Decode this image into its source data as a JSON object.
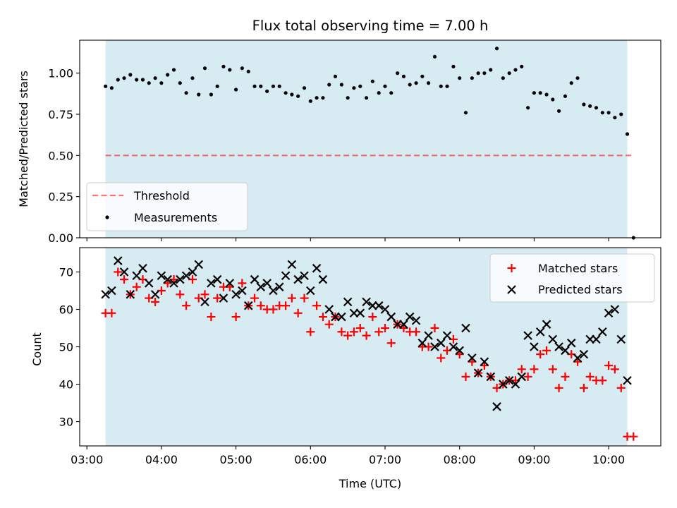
{
  "chart_data": [
    {
      "type": "scatter",
      "title": "Flux total observing time = 7.00 h",
      "xlabel": "",
      "ylabel": "Matched/Predicted stars",
      "ylim": [
        0,
        1.2
      ],
      "yticks": [
        0.0,
        0.25,
        0.5,
        0.75,
        1.0
      ],
      "ytick_labels": [
        "0.00",
        "0.25",
        "0.50",
        "0.75",
        "1.00"
      ],
      "xlim_hours": [
        2.89,
        10.68
      ],
      "observing_window_hours": [
        3.25,
        10.25
      ],
      "shade_color": "#add8e6",
      "threshold": {
        "name": "Threshold",
        "value": 0.5,
        "x_range_hours": [
          3.25,
          10.33
        ],
        "color": "#ff0000"
      },
      "legend": {
        "placement": "lower-left",
        "entries": [
          "Threshold",
          "Measurements"
        ]
      },
      "series": [
        {
          "name": "Measurements",
          "color": "#000000",
          "marker": "dot",
          "x_hours": [
            3.25,
            3.333,
            3.417,
            3.5,
            3.583,
            3.667,
            3.75,
            3.833,
            3.917,
            4,
            4.083,
            4.167,
            4.25,
            4.333,
            4.417,
            4.5,
            4.583,
            4.667,
            4.75,
            4.833,
            4.917,
            5,
            5.083,
            5.167,
            5.25,
            5.333,
            5.417,
            5.5,
            5.583,
            5.667,
            5.75,
            5.833,
            5.917,
            6,
            6.083,
            6.167,
            6.25,
            6.333,
            6.417,
            6.5,
            6.583,
            6.667,
            6.75,
            6.833,
            6.917,
            7,
            7.083,
            7.167,
            7.25,
            7.333,
            7.417,
            7.5,
            7.583,
            7.667,
            7.75,
            7.833,
            7.917,
            8,
            8.083,
            8.167,
            8.25,
            8.333,
            8.417,
            8.5,
            8.583,
            8.667,
            8.75,
            8.833,
            8.917,
            9,
            9.083,
            9.167,
            9.25,
            9.333,
            9.417,
            9.5,
            9.583,
            9.667,
            9.75,
            9.833,
            9.917,
            10,
            10.083,
            10.167,
            10.25,
            10.333
          ],
          "y": [
            0.92,
            0.91,
            0.96,
            0.97,
            0.99,
            0.96,
            0.96,
            0.94,
            0.97,
            0.94,
            0.99,
            1.02,
            0.94,
            0.88,
            0.97,
            0.87,
            1.03,
            0.87,
            0.92,
            1.04,
            1.02,
            0.9,
            1.03,
            1.01,
            0.92,
            0.92,
            0.89,
            0.92,
            0.92,
            0.88,
            0.87,
            0.86,
            0.91,
            0.83,
            0.85,
            0.85,
            0.93,
            0.98,
            0.93,
            0.85,
            0.91,
            0.92,
            0.85,
            0.95,
            0.88,
            0.92,
            0.88,
            1.0,
            0.98,
            0.93,
            0.94,
            0.98,
            0.94,
            1.1,
            0.92,
            0.92,
            1.04,
            0.97,
            0.76,
            0.97,
            1.0,
            1.0,
            1.02,
            1.15,
            0.97,
            1.0,
            1.02,
            1.04,
            0.79,
            0.88,
            0.88,
            0.87,
            0.84,
            0.77,
            0.86,
            0.94,
            0.97,
            0.81,
            0.8,
            0.79,
            0.76,
            0.76,
            0.73,
            0.75,
            0.63,
            0.0
          ]
        }
      ]
    },
    {
      "type": "scatter",
      "title": "",
      "xlabel": "Time (UTC)",
      "ylabel": "Count",
      "ylim": [
        23.5,
        76.5
      ],
      "yticks": [
        30,
        40,
        50,
        60,
        70
      ],
      "ytick_labels": [
        "30",
        "40",
        "50",
        "60",
        "70"
      ],
      "xlim_hours": [
        2.89,
        10.68
      ],
      "xticks_hours": [
        3,
        4,
        5,
        6,
        7,
        8,
        9,
        10
      ],
      "xtick_labels": [
        "03:00",
        "04:00",
        "05:00",
        "06:00",
        "07:00",
        "08:00",
        "09:00",
        "10:00"
      ],
      "observing_window_hours": [
        3.25,
        10.25
      ],
      "shade_color": "#add8e6",
      "legend": {
        "placement": "top-right",
        "entries": [
          "Matched stars",
          "Predicted stars"
        ]
      },
      "series": [
        {
          "name": "Matched stars",
          "color": "#ff0000",
          "marker": "plus",
          "x_hours": [
            3.25,
            3.333,
            3.417,
            3.5,
            3.583,
            3.667,
            3.75,
            3.833,
            3.917,
            4,
            4.083,
            4.167,
            4.25,
            4.333,
            4.417,
            4.5,
            4.583,
            4.667,
            4.75,
            4.833,
            4.917,
            5,
            5.083,
            5.167,
            5.25,
            5.333,
            5.417,
            5.5,
            5.583,
            5.667,
            5.75,
            5.833,
            5.917,
            6,
            6.083,
            6.167,
            6.25,
            6.333,
            6.417,
            6.5,
            6.583,
            6.667,
            6.75,
            6.833,
            6.917,
            7,
            7.083,
            7.167,
            7.25,
            7.333,
            7.417,
            7.5,
            7.583,
            7.667,
            7.75,
            7.833,
            7.917,
            8,
            8.083,
            8.167,
            8.25,
            8.333,
            8.417,
            8.5,
            8.583,
            8.667,
            8.75,
            8.833,
            8.917,
            9,
            9.083,
            9.167,
            9.25,
            9.333,
            9.417,
            9.5,
            9.583,
            9.667,
            9.75,
            9.833,
            9.917,
            10,
            10.083,
            10.167,
            10.25,
            10.333
          ],
          "y": [
            59,
            59,
            70,
            68,
            64,
            66,
            68,
            63,
            62,
            65,
            67,
            68,
            64,
            61,
            68,
            63,
            64,
            58,
            63,
            66,
            66,
            58,
            67,
            61,
            63,
            61,
            60,
            60,
            61,
            61,
            63,
            59,
            63,
            54,
            61,
            58,
            56,
            58,
            54,
            53,
            54,
            55,
            53,
            58,
            54,
            55,
            51,
            56,
            55,
            54,
            54,
            50,
            50,
            55,
            47,
            49,
            52,
            48,
            42,
            46,
            43,
            45,
            42,
            39,
            40,
            41,
            41,
            44,
            42,
            44,
            48,
            49,
            44,
            39,
            42,
            48,
            46,
            39,
            42,
            41,
            41,
            45,
            44,
            39,
            26,
            26
          ]
        },
        {
          "name": "Predicted stars",
          "color": "#000000",
          "marker": "x",
          "x_hours": [
            3.25,
            3.333,
            3.417,
            3.5,
            3.583,
            3.667,
            3.75,
            3.833,
            3.917,
            4,
            4.083,
            4.167,
            4.25,
            4.333,
            4.417,
            4.5,
            4.583,
            4.667,
            4.75,
            4.833,
            4.917,
            5,
            5.083,
            5.167,
            5.25,
            5.333,
            5.417,
            5.5,
            5.583,
            5.667,
            5.75,
            5.833,
            5.917,
            6,
            6.083,
            6.167,
            6.25,
            6.333,
            6.417,
            6.5,
            6.583,
            6.667,
            6.75,
            6.833,
            6.917,
            7,
            7.083,
            7.167,
            7.25,
            7.333,
            7.417,
            7.5,
            7.583,
            7.667,
            7.75,
            7.833,
            7.917,
            8,
            8.083,
            8.167,
            8.25,
            8.333,
            8.417,
            8.5,
            8.583,
            8.667,
            8.75,
            8.833,
            8.917,
            9,
            9.083,
            9.167,
            9.25,
            9.333,
            9.417,
            9.5,
            9.583,
            9.667,
            9.75,
            9.833,
            9.917,
            10,
            10.083,
            10.167,
            10.25
          ],
          "y": [
            64,
            65,
            73,
            70,
            64,
            69,
            71,
            67,
            64,
            69,
            68,
            67,
            68,
            69,
            70,
            72,
            62,
            67,
            68,
            63,
            67,
            64,
            65,
            61,
            68,
            66,
            67,
            65,
            66,
            69,
            72,
            68,
            69,
            65,
            71,
            68,
            60,
            58,
            58,
            62,
            59,
            59,
            62,
            61,
            61,
            60,
            58,
            56,
            56,
            58,
            57,
            51,
            53,
            50,
            51,
            53,
            50,
            49,
            55,
            47,
            43,
            46,
            42,
            34,
            40,
            41,
            40,
            42,
            53,
            50,
            54,
            56,
            52,
            50,
            49,
            51,
            47,
            48,
            52,
            52,
            54,
            59,
            60,
            52,
            41
          ]
        }
      ]
    }
  ]
}
